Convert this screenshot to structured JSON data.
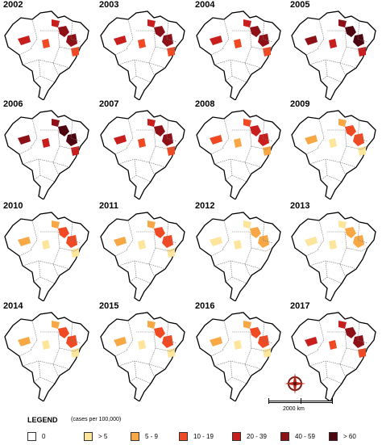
{
  "colors": {
    "c0": "#ffffff",
    "c1": "#fde59c",
    "c2": "#f7a845",
    "c3": "#ef4a24",
    "c4": "#c81e1e",
    "c5": "#8e1118",
    "c6": "#4d0510"
  },
  "panels": [
    {
      "year": "2002",
      "level": 5
    },
    {
      "year": "2003",
      "level": 5
    },
    {
      "year": "2004",
      "level": 5
    },
    {
      "year": "2005",
      "level": 6
    },
    {
      "year": "2006",
      "level": 6
    },
    {
      "year": "2007",
      "level": 5
    },
    {
      "year": "2008",
      "level": 4
    },
    {
      "year": "2009",
      "level": 3
    },
    {
      "year": "2010",
      "level": 3
    },
    {
      "year": "2011",
      "level": 3
    },
    {
      "year": "2012",
      "level": 2
    },
    {
      "year": "2013",
      "level": 2
    },
    {
      "year": "2014",
      "level": 3
    },
    {
      "year": "2015",
      "level": 3
    },
    {
      "year": "2016",
      "level": 3
    },
    {
      "year": "2017",
      "level": 5
    }
  ],
  "scale": {
    "label": "2000 km"
  },
  "compass_icon": "compass-rose-icon",
  "legend": {
    "title": "LEGEND",
    "unit": "(cases per 100,000)",
    "items": [
      {
        "label": "0",
        "color": "#ffffff"
      },
      {
        "label": "> 5",
        "color": "#fde59c"
      },
      {
        "label": "5 - 9",
        "color": "#f7a845"
      },
      {
        "label": "10 - 19",
        "color": "#ef4a24"
      },
      {
        "label": "20 - 39",
        "color": "#c81e1e"
      },
      {
        "label": "40 - 59",
        "color": "#8e1118"
      },
      {
        "label": "> 60",
        "color": "#4d0510"
      }
    ]
  }
}
